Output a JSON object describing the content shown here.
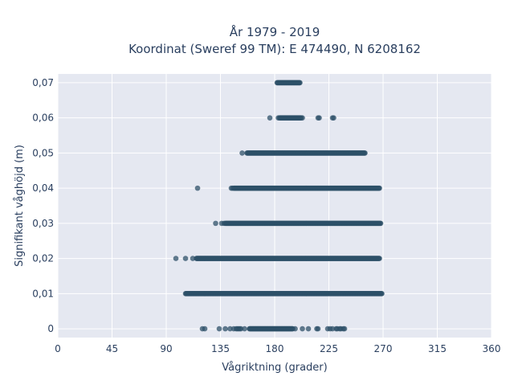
{
  "chart_data": {
    "type": "scatter",
    "title_line1": "År 1979 - 2019",
    "title_line2": "Koordinat (Sweref 99 TM): E 474490, N 6208162",
    "xlabel": "Vågriktning (grader)",
    "ylabel": "Signifikant våghöjd (m)",
    "xlim": [
      0,
      360
    ],
    "ylim": [
      -0.0025,
      0.0725
    ],
    "xticks": [
      {
        "value": 0,
        "label": "0"
      },
      {
        "value": 45,
        "label": "45"
      },
      {
        "value": 90,
        "label": "90"
      },
      {
        "value": 135,
        "label": "135"
      },
      {
        "value": 180,
        "label": "180"
      },
      {
        "value": 225,
        "label": "225"
      },
      {
        "value": 270,
        "label": "270"
      },
      {
        "value": 315,
        "label": "315"
      },
      {
        "value": 360,
        "label": "360"
      }
    ],
    "yticks": [
      {
        "value": 0,
        "label": "0"
      },
      {
        "value": 0.01,
        "label": "0,01"
      },
      {
        "value": 0.02,
        "label": "0,02"
      },
      {
        "value": 0.03,
        "label": "0,03"
      },
      {
        "value": 0.04,
        "label": "0,04"
      },
      {
        "value": 0.05,
        "label": "0,05"
      },
      {
        "value": 0.06,
        "label": "0,06"
      },
      {
        "value": 0.07,
        "label": "0,07"
      }
    ],
    "grid": true,
    "marker_color": "#2e5068",
    "plot_bg": "#e5e8f1",
    "series": [
      {
        "y": 0.07,
        "dense_from": 182,
        "dense_to": 201,
        "scattered": []
      },
      {
        "y": 0.06,
        "dense_from": 184,
        "dense_to": 202,
        "scattered": [
          176,
          183,
          203,
          216,
          217,
          228,
          229
        ]
      },
      {
        "y": 0.05,
        "dense_from": 157,
        "dense_to": 255,
        "scattered": [
          153
        ]
      },
      {
        "y": 0.04,
        "dense_from": 146,
        "dense_to": 267,
        "scattered": [
          116,
          144,
          145
        ]
      },
      {
        "y": 0.03,
        "dense_from": 139,
        "dense_to": 268,
        "scattered": [
          131,
          136,
          138
        ]
      },
      {
        "y": 0.02,
        "dense_from": 115,
        "dense_to": 267,
        "scattered": [
          98,
          106,
          112
        ]
      },
      {
        "y": 0.01,
        "dense_from": 106,
        "dense_to": 269,
        "scattered": []
      },
      {
        "y": 0,
        "dense_from": 159,
        "dense_to": 195,
        "scattered": [
          120,
          122,
          134,
          139,
          143,
          146,
          148,
          149,
          150,
          151,
          152,
          155,
          197,
          203,
          208,
          215,
          216,
          224,
          226,
          228,
          231,
          232,
          234,
          235,
          237,
          238
        ]
      }
    ]
  }
}
